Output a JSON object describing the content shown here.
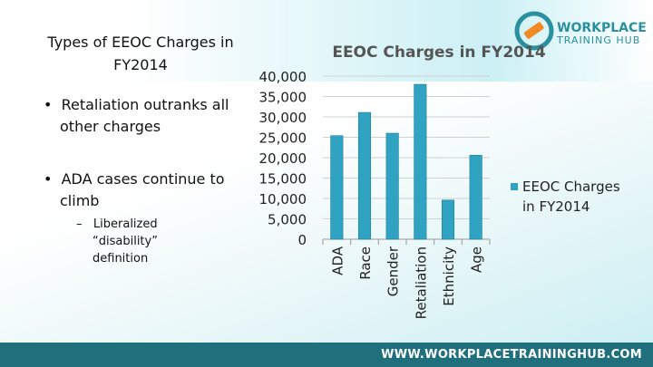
{
  "slide": {
    "title": "Types of EEOC Charges in FY2014",
    "bullets": [
      "Retaliation outranks all other charges",
      "ADA cases continue to climb"
    ],
    "sub_bullets": [
      "Liberalized “disability” definition"
    ]
  },
  "logo": {
    "line1": "WORKPLACE",
    "line2": "TRAINING HUB"
  },
  "footer": "WWW.WORKPLACETRAININGHUB.COM",
  "chart_data": {
    "type": "bar",
    "title": "EEOC Charges in FY2014",
    "categories": [
      "ADA",
      "Race",
      "Gender",
      "Retaliation",
      "Ethnicity",
      "Age"
    ],
    "series": [
      {
        "name": "EEOC Charges in FY2014",
        "color": "#2fa3c1",
        "values": [
          25400,
          31100,
          26000,
          38000,
          9600,
          20600
        ]
      }
    ],
    "ylim": [
      0,
      40000
    ],
    "yticks": [
      0,
      {
        "value": 5000,
        "label": "5,000"
      },
      {
        "value": 10000,
        "label": "10,000"
      },
      {
        "value": 15000,
        "label": "15,000"
      },
      {
        "value": 20000,
        "label": "20,000"
      },
      {
        "value": 25000,
        "label": "25,000"
      },
      {
        "value": 30000,
        "label": "30,000"
      },
      {
        "value": 35000,
        "label": "35,000"
      },
      {
        "value": 40000,
        "label": "40,000"
      }
    ],
    "grid": true,
    "legend": "right"
  }
}
